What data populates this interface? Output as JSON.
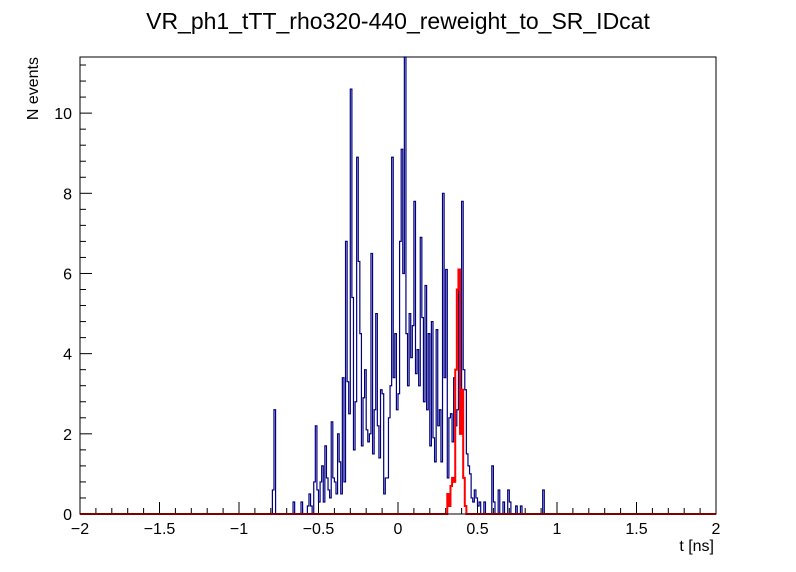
{
  "chart_data": {
    "type": "histogram",
    "title": "VR_ph1_tTT_rho320-440_reweight_to_SR_IDcat",
    "xlabel": "t [ns]",
    "ylabel": "N events",
    "xlim": [
      -2,
      2
    ],
    "ylim": [
      0,
      11.4
    ],
    "x_ticks": [
      -2,
      -1.5,
      -1,
      -0.5,
      0,
      0.5,
      1,
      1.5,
      2
    ],
    "x_tick_labels": [
      "−2",
      "−1.5",
      "−1",
      "−0.5",
      "0",
      "0.5",
      "1",
      "1.5",
      "2"
    ],
    "y_ticks": [
      0,
      2,
      4,
      6,
      8,
      10
    ],
    "y_tick_labels": [
      "0",
      "2",
      "4",
      "6",
      "8",
      "10"
    ],
    "bin_width": 0.01,
    "grid": false,
    "legend": "none",
    "series": [
      {
        "color": "#000080",
        "bins": [
          [
            -0.79,
            0.6
          ],
          [
            -0.78,
            2.6
          ],
          [
            -0.77,
            0
          ],
          [
            -0.66,
            0.3
          ],
          [
            -0.65,
            0
          ],
          [
            -0.61,
            0.3
          ],
          [
            -0.6,
            0
          ],
          [
            -0.57,
            0.2
          ],
          [
            -0.56,
            0.5
          ],
          [
            -0.55,
            0.2
          ],
          [
            -0.53,
            0.8
          ],
          [
            -0.52,
            2.2
          ],
          [
            -0.51,
            0.6
          ],
          [
            -0.5,
            0.3
          ],
          [
            -0.49,
            0.8
          ],
          [
            -0.48,
            1.2
          ],
          [
            -0.47,
            0.3
          ],
          [
            -0.46,
            1.7
          ],
          [
            -0.45,
            0.9
          ],
          [
            -0.44,
            0.6
          ],
          [
            -0.43,
            0.4
          ],
          [
            -0.42,
            2.3
          ],
          [
            -0.41,
            0.9
          ],
          [
            -0.4,
            0.8
          ],
          [
            -0.39,
            0.5
          ],
          [
            -0.38,
            2.0
          ],
          [
            -0.37,
            1.3
          ],
          [
            -0.36,
            0.5
          ],
          [
            -0.35,
            3.4
          ],
          [
            -0.34,
            0.8
          ],
          [
            -0.33,
            6.8
          ],
          [
            -0.32,
            3.3
          ],
          [
            -0.31,
            2.5
          ],
          [
            -0.3,
            10.6
          ],
          [
            -0.29,
            5.4
          ],
          [
            -0.28,
            1.6
          ],
          [
            -0.27,
            2.8
          ],
          [
            -0.26,
            8.9
          ],
          [
            -0.25,
            6.3
          ],
          [
            -0.24,
            4.5
          ],
          [
            -0.23,
            1.7
          ],
          [
            -0.22,
            2.9
          ],
          [
            -0.21,
            3.6
          ],
          [
            -0.2,
            2.1
          ],
          [
            -0.19,
            1.8
          ],
          [
            -0.18,
            2.0
          ],
          [
            -0.17,
            6.5
          ],
          [
            -0.16,
            1.5
          ],
          [
            -0.15,
            2.6
          ],
          [
            -0.14,
            5.0
          ],
          [
            -0.13,
            2.2
          ],
          [
            -0.12,
            1.4
          ],
          [
            -0.11,
            3.1
          ],
          [
            -0.1,
            3.0
          ],
          [
            -0.09,
            0.5
          ],
          [
            -0.08,
            0.9
          ],
          [
            -0.07,
            0.9
          ],
          [
            -0.06,
            2.4
          ],
          [
            -0.05,
            3.2
          ],
          [
            -0.04,
            8.9
          ],
          [
            -0.03,
            3.4
          ],
          [
            -0.02,
            4.5
          ],
          [
            -0.01,
            2.6
          ],
          [
            0.0,
            3.0
          ],
          [
            0.01,
            6.8
          ],
          [
            0.02,
            9.1
          ],
          [
            0.03,
            6.0
          ],
          [
            0.04,
            11.4
          ],
          [
            0.05,
            4.5
          ],
          [
            0.06,
            3.2
          ],
          [
            0.07,
            5.0
          ],
          [
            0.08,
            3.9
          ],
          [
            0.09,
            4.7
          ],
          [
            0.1,
            7.8
          ],
          [
            0.11,
            3.5
          ],
          [
            0.12,
            4.1
          ],
          [
            0.13,
            3.2
          ],
          [
            0.14,
            6.9
          ],
          [
            0.15,
            4.9
          ],
          [
            0.16,
            2.8
          ],
          [
            0.17,
            5.7
          ],
          [
            0.18,
            2.6
          ],
          [
            0.19,
            4.5
          ],
          [
            0.2,
            1.7
          ],
          [
            0.21,
            4.8
          ],
          [
            0.22,
            1.9
          ],
          [
            0.23,
            1.3
          ],
          [
            0.24,
            4.6
          ],
          [
            0.25,
            2.2
          ],
          [
            0.26,
            2.6
          ],
          [
            0.27,
            1.3
          ],
          [
            0.28,
            8.0
          ],
          [
            0.29,
            3.4
          ],
          [
            0.3,
            6.1
          ],
          [
            0.31,
            0.9
          ],
          [
            0.32,
            2.4
          ],
          [
            0.33,
            2.5
          ],
          [
            0.34,
            1.8
          ],
          [
            0.35,
            3.4
          ],
          [
            0.36,
            2.2
          ],
          [
            0.37,
            2.6
          ],
          [
            0.38,
            5.8
          ],
          [
            0.39,
            2.3
          ],
          [
            0.4,
            7.8
          ],
          [
            0.41,
            3.6
          ],
          [
            0.42,
            3.1
          ],
          [
            0.43,
            1.5
          ],
          [
            0.44,
            1.2
          ],
          [
            0.45,
            1.0
          ],
          [
            0.46,
            0.4
          ],
          [
            0.47,
            0.3
          ],
          [
            0.48,
            0.6
          ],
          [
            0.49,
            0.4
          ],
          [
            0.5,
            0.2
          ],
          [
            0.51,
            0.3
          ],
          [
            0.52,
            0
          ],
          [
            0.54,
            0.3
          ],
          [
            0.55,
            0
          ],
          [
            0.59,
            1.2
          ],
          [
            0.6,
            0.3
          ],
          [
            0.61,
            0
          ],
          [
            0.63,
            0.6
          ],
          [
            0.64,
            0
          ],
          [
            0.66,
            0.3
          ],
          [
            0.67,
            0
          ],
          [
            0.69,
            0.6
          ],
          [
            0.7,
            0.3
          ],
          [
            0.71,
            0
          ],
          [
            0.74,
            0.2
          ],
          [
            0.75,
            0
          ],
          [
            0.77,
            0.2
          ],
          [
            0.78,
            0
          ],
          [
            0.91,
            0.6
          ],
          [
            0.92,
            0
          ]
        ]
      },
      {
        "color": "#ff0000",
        "bins": [
          [
            0.31,
            0.5
          ],
          [
            0.32,
            0.2
          ],
          [
            0.33,
            0.7
          ],
          [
            0.34,
            0.9
          ],
          [
            0.35,
            0.8
          ],
          [
            0.36,
            3.6
          ],
          [
            0.37,
            5.6
          ],
          [
            0.38,
            6.1
          ],
          [
            0.39,
            2.0
          ],
          [
            0.4,
            3.1
          ],
          [
            0.41,
            0.9
          ],
          [
            0.42,
            0.2
          ],
          [
            0.43,
            0
          ]
        ]
      }
    ]
  }
}
